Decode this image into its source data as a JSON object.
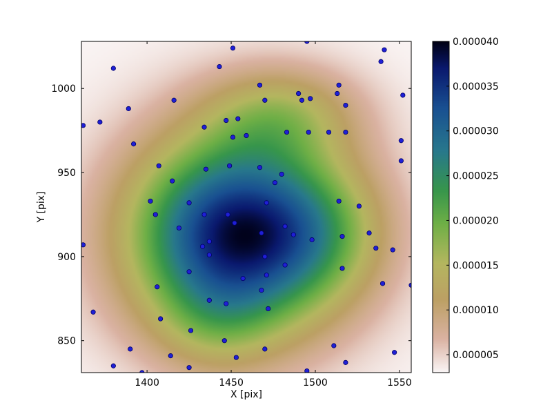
{
  "chart_data": {
    "type": "scatter",
    "title": "",
    "xlabel": "X [pix]",
    "ylabel": "Y [pix]",
    "xlim": [
      1361,
      1557
    ],
    "ylim": [
      831,
      1028
    ],
    "x_ticks": [
      1400,
      1450,
      1500,
      1550
    ],
    "x_tick_labels": [
      "1400",
      "1450",
      "1500",
      "1550"
    ],
    "y_ticks": [
      850,
      900,
      950,
      1000
    ],
    "y_tick_labels": [
      "850",
      "900",
      "950",
      "1000"
    ],
    "grid": false,
    "background": {
      "type": "heatmap",
      "colormap": "gist_earth_r",
      "peak": [
        1453,
        913
      ],
      "colorbar": {
        "range": [
          3e-06,
          4e-05
        ],
        "ticks": [
          5e-06,
          1e-05,
          1.5e-05,
          2e-05,
          2.5e-05,
          3e-05,
          3.5e-05,
          4e-05
        ],
        "tick_labels": [
          "0.000005",
          "0.000010",
          "0.000015",
          "0.000020",
          "0.000025",
          "0.000030",
          "0.000035",
          "0.000040"
        ]
      }
    },
    "marker_color": "#1f1fd6",
    "marker_edge": "#000066",
    "points": [
      [
        1451,
        1024
      ],
      [
        1495,
        1028
      ],
      [
        1541,
        1023
      ],
      [
        1380,
        1012
      ],
      [
        1443,
        1013
      ],
      [
        1539,
        1016
      ],
      [
        1467,
        1002
      ],
      [
        1514,
        1002
      ],
      [
        1490,
        997
      ],
      [
        1513,
        997
      ],
      [
        1552,
        996
      ],
      [
        1416,
        993
      ],
      [
        1470,
        993
      ],
      [
        1492,
        993
      ],
      [
        1497,
        994
      ],
      [
        1518,
        990
      ],
      [
        1389,
        988
      ],
      [
        1454,
        982
      ],
      [
        1447,
        981
      ],
      [
        1372,
        980
      ],
      [
        1362,
        978
      ],
      [
        1434,
        977
      ],
      [
        1483,
        974
      ],
      [
        1496,
        974
      ],
      [
        1508,
        974
      ],
      [
        1518,
        974
      ],
      [
        1459,
        972
      ],
      [
        1451,
        971
      ],
      [
        1551,
        969
      ],
      [
        1392,
        967
      ],
      [
        1551,
        957
      ],
      [
        1407,
        954
      ],
      [
        1449,
        954
      ],
      [
        1467,
        953
      ],
      [
        1435,
        952
      ],
      [
        1480,
        949
      ],
      [
        1476,
        944
      ],
      [
        1415,
        945
      ],
      [
        1402,
        933
      ],
      [
        1425,
        932
      ],
      [
        1471,
        932
      ],
      [
        1514,
        933
      ],
      [
        1526,
        930
      ],
      [
        1405,
        925
      ],
      [
        1434,
        925
      ],
      [
        1448,
        925
      ],
      [
        1452,
        920
      ],
      [
        1419,
        917
      ],
      [
        1482,
        918
      ],
      [
        1487,
        913
      ],
      [
        1468,
        914
      ],
      [
        1532,
        914
      ],
      [
        1516,
        912
      ],
      [
        1498,
        910
      ],
      [
        1437,
        909
      ],
      [
        1433,
        906
      ],
      [
        1536,
        905
      ],
      [
        1546,
        904
      ],
      [
        1362,
        907
      ],
      [
        1437,
        901
      ],
      [
        1470,
        900
      ],
      [
        1482,
        895
      ],
      [
        1516,
        893
      ],
      [
        1425,
        891
      ],
      [
        1471,
        889
      ],
      [
        1457,
        887
      ],
      [
        1540,
        884
      ],
      [
        1557,
        883
      ],
      [
        1406,
        882
      ],
      [
        1468,
        880
      ],
      [
        1437,
        874
      ],
      [
        1447,
        872
      ],
      [
        1472,
        869
      ],
      [
        1368,
        867
      ],
      [
        1408,
        863
      ],
      [
        1426,
        856
      ],
      [
        1446,
        850
      ],
      [
        1511,
        847
      ],
      [
        1390,
        845
      ],
      [
        1470,
        845
      ],
      [
        1547,
        843
      ],
      [
        1414,
        841
      ],
      [
        1453,
        840
      ],
      [
        1518,
        837
      ],
      [
        1380,
        835
      ],
      [
        1425,
        834
      ],
      [
        1397,
        831
      ],
      [
        1495,
        832
      ]
    ]
  }
}
